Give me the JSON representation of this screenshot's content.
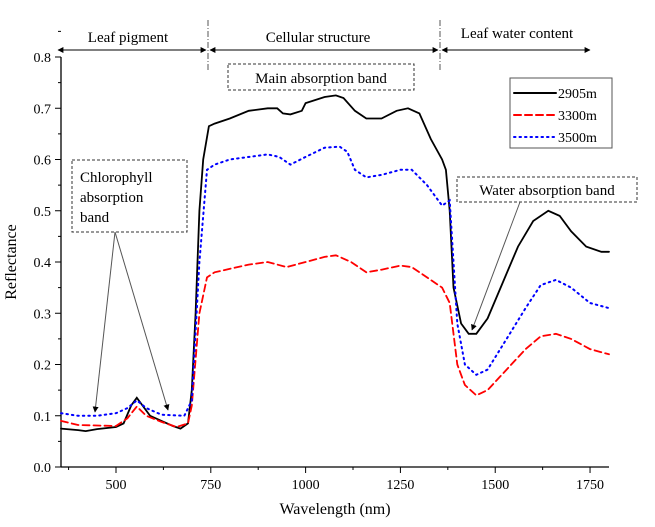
{
  "chart_data": {
    "type": "line",
    "title": "",
    "xlabel": "Wavelength (nm)",
    "ylabel": "Reflectance",
    "xlim": [
      355,
      1800
    ],
    "ylim": [
      0,
      0.8
    ],
    "xticks": [
      500,
      750,
      1000,
      1250,
      1500,
      1750
    ],
    "yticks": [
      "0.0",
      "0.1",
      "0.2",
      "0.3",
      "0.4",
      "0.5",
      "0.6",
      "0.7",
      "0.8"
    ],
    "grid": false,
    "legend_position": "top-right",
    "regions": [
      "Leaf pigment",
      "Cellular structure",
      "Leaf water content"
    ],
    "annotations": {
      "chlorophyll": [
        "Chlorophyll",
        "absorption",
        "band"
      ],
      "main": "Main absorption band",
      "water": "Water absorption band"
    },
    "series": [
      {
        "name": "2905m",
        "color": "#000000",
        "style": "solid",
        "x": [
          355,
          400,
          420,
          450,
          500,
          520,
          540,
          555,
          570,
          590,
          620,
          650,
          670,
          690,
          700,
          710,
          720,
          730,
          745,
          760,
          800,
          850,
          900,
          925,
          940,
          960,
          990,
          1000,
          1050,
          1080,
          1100,
          1130,
          1160,
          1200,
          1240,
          1270,
          1300,
          1330,
          1360,
          1370,
          1380,
          1390,
          1410,
          1430,
          1450,
          1480,
          1520,
          1560,
          1600,
          1640,
          1670,
          1700,
          1740,
          1780,
          1800
        ],
        "y": [
          0.075,
          0.072,
          0.07,
          0.074,
          0.078,
          0.085,
          0.12,
          0.135,
          0.12,
          0.1,
          0.09,
          0.08,
          0.075,
          0.085,
          0.15,
          0.3,
          0.5,
          0.6,
          0.665,
          0.67,
          0.68,
          0.695,
          0.7,
          0.7,
          0.69,
          0.688,
          0.695,
          0.71,
          0.722,
          0.725,
          0.72,
          0.695,
          0.68,
          0.68,
          0.695,
          0.7,
          0.69,
          0.64,
          0.6,
          0.58,
          0.5,
          0.35,
          0.28,
          0.26,
          0.26,
          0.29,
          0.36,
          0.43,
          0.48,
          0.5,
          0.49,
          0.46,
          0.43,
          0.42,
          0.42
        ]
      },
      {
        "name": "3300m",
        "color": "#ff0000",
        "style": "dashed",
        "x": [
          355,
          400,
          500,
          530,
          555,
          580,
          620,
          660,
          690,
          700,
          720,
          740,
          760,
          850,
          900,
          950,
          1000,
          1050,
          1080,
          1120,
          1160,
          1200,
          1250,
          1280,
          1320,
          1360,
          1380,
          1400,
          1420,
          1450,
          1480,
          1530,
          1580,
          1620,
          1660,
          1700,
          1750,
          1800
        ],
        "y": [
          0.09,
          0.082,
          0.08,
          0.095,
          0.118,
          0.1,
          0.088,
          0.078,
          0.085,
          0.12,
          0.3,
          0.37,
          0.38,
          0.395,
          0.4,
          0.39,
          0.4,
          0.41,
          0.413,
          0.4,
          0.38,
          0.385,
          0.393,
          0.39,
          0.37,
          0.35,
          0.32,
          0.2,
          0.16,
          0.14,
          0.15,
          0.19,
          0.23,
          0.255,
          0.26,
          0.25,
          0.23,
          0.22
        ]
      },
      {
        "name": "3500m",
        "color": "#0000ff",
        "style": "dotted",
        "x": [
          355,
          400,
          450,
          500,
          530,
          555,
          580,
          620,
          680,
          700,
          720,
          740,
          760,
          800,
          900,
          930,
          960,
          1000,
          1050,
          1090,
          1110,
          1130,
          1160,
          1200,
          1250,
          1280,
          1320,
          1360,
          1380,
          1400,
          1420,
          1450,
          1480,
          1530,
          1580,
          1620,
          1660,
          1700,
          1750,
          1800
        ],
        "y": [
          0.105,
          0.1,
          0.1,
          0.105,
          0.115,
          0.13,
          0.115,
          0.102,
          0.1,
          0.13,
          0.4,
          0.58,
          0.59,
          0.6,
          0.61,
          0.605,
          0.59,
          0.605,
          0.623,
          0.625,
          0.615,
          0.58,
          0.565,
          0.57,
          0.58,
          0.58,
          0.55,
          0.51,
          0.52,
          0.28,
          0.2,
          0.18,
          0.19,
          0.25,
          0.31,
          0.355,
          0.365,
          0.35,
          0.32,
          0.31
        ]
      }
    ]
  }
}
